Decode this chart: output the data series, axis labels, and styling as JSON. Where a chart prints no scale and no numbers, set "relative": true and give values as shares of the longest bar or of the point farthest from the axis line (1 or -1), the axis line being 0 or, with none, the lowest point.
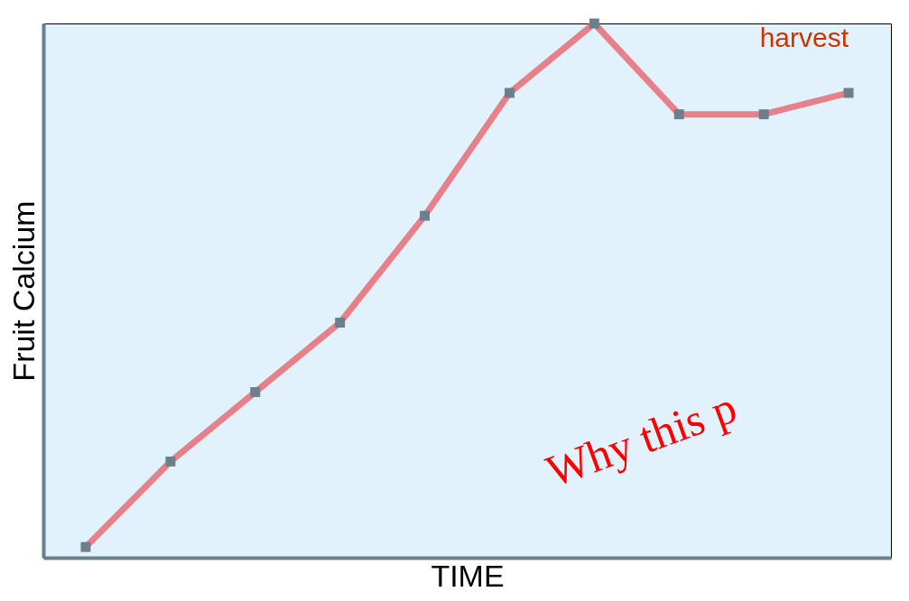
{
  "chart_data": {
    "type": "line",
    "relative": true,
    "xlabel": "TIME",
    "ylabel": "Fruit Calcium",
    "categories": [
      null,
      null,
      null,
      null,
      null,
      null,
      null,
      null,
      null,
      null
    ],
    "series": [
      {
        "color": "#e8808a",
        "values": [
          0.02,
          0.18,
          0.31,
          0.44,
          0.64,
          0.87,
          1,
          0.83,
          0.83,
          0.87
        ]
      }
    ],
    "marker": "square",
    "line_style": "solid",
    "grid": false,
    "annotations": [
      "harvest",
      "Why this p"
    ]
  }
}
